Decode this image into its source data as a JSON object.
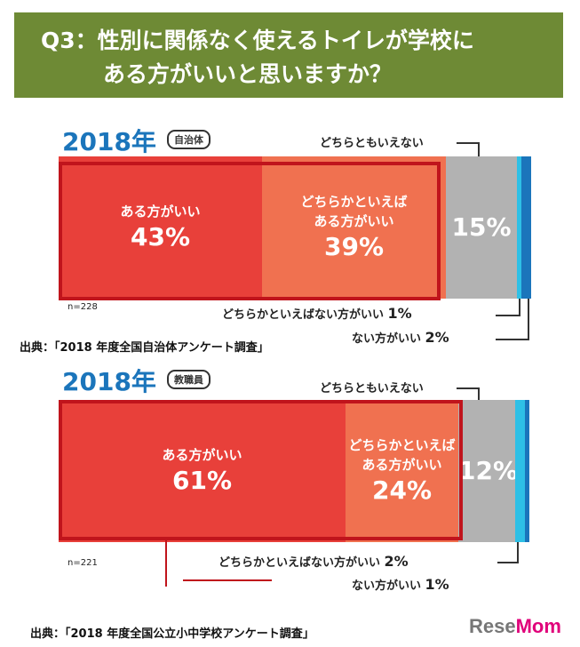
{
  "title": {
    "line1": "Q3：性別に関係なく使えるトイレが学校に",
    "line2": "ある方がいいと思いますか？"
  },
  "colors": {
    "title_bg": "#6e8a35",
    "dark_red": "#e8403a",
    "light_red": "#f07150",
    "gray": "#b2b2b2",
    "light_blue": "#2ec0e6",
    "blue": "#1b75bb",
    "frame": "#c0141c"
  },
  "chart_data": [
    {
      "type": "bar",
      "orientation": "horizontal-stacked",
      "year": "2018年",
      "group": "自治体",
      "n": "n=228",
      "source": "出典：「2018 年度全国自治体アンケート調査」",
      "categories": [
        "ある方がいい",
        "どちらかといえばある方がいい",
        "どちらともいえない",
        "どちらかといえばない方がいい",
        "ない方がいい"
      ],
      "values": [
        43,
        39,
        15,
        1,
        2
      ],
      "labels": [
        "43%",
        "39%",
        "15%",
        "1%",
        "2%"
      ]
    },
    {
      "type": "bar",
      "orientation": "horizontal-stacked",
      "year": "2018年",
      "group": "教職員",
      "n": "n=221",
      "source": "出典：「2018 年度全国公立小中学校アンケート調査」",
      "categories": [
        "ある方がいい",
        "どちらかといえばある方がいい",
        "どちらともいえない",
        "どちらかといえばない方がいい",
        "ない方がいい"
      ],
      "values": [
        61,
        24,
        12,
        2,
        1
      ],
      "labels": [
        "61%",
        "24%",
        "12%",
        "2%",
        "1%"
      ]
    }
  ],
  "labels": {
    "a": "ある方がいい",
    "b1": "どちらかといえば",
    "b2": "ある方がいい",
    "c": "どちらともいえない",
    "d": "どちらかといえばない方がいい",
    "e": "ない方がいい"
  },
  "logo": {
    "text1": "Rese",
    "text2": "Mom"
  }
}
